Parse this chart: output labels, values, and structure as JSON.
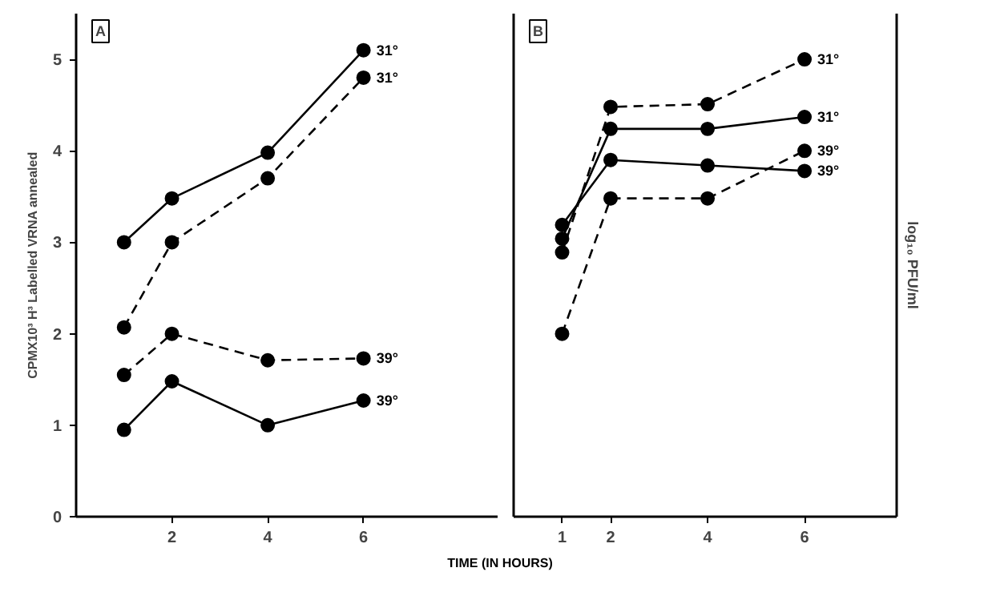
{
  "chart_data": [
    {
      "type": "line",
      "title": "A",
      "ylabel": "CPMX10³ H³ Labelled VRNA annealed",
      "x": [
        1,
        2,
        4,
        6
      ],
      "xlim": [
        0,
        8.8
      ],
      "ylim": [
        0,
        5.5
      ],
      "xticks": [
        2,
        4,
        6
      ],
      "yticks": [
        0,
        1,
        2,
        3,
        4,
        5
      ],
      "marker": "circle",
      "grid": false,
      "series": [
        {
          "name": "31°",
          "color": "#000000",
          "line_style": "solid",
          "values": [
            3.0,
            3.48,
            3.98,
            5.1
          ]
        },
        {
          "name": "31°",
          "color": "#000000",
          "line_style": "dashed",
          "values": [
            2.07,
            3.0,
            3.7,
            4.8
          ]
        },
        {
          "name": "39°",
          "color": "#000000",
          "line_style": "dashed",
          "values": [
            1.55,
            2.0,
            1.71,
            1.73
          ]
        },
        {
          "name": "39°",
          "color": "#000000",
          "line_style": "solid",
          "values": [
            0.95,
            1.48,
            1.0,
            1.27
          ]
        }
      ]
    },
    {
      "type": "line",
      "title": "B",
      "xlabel": "TIME (IN HOURS)",
      "y2label": "log₁₀ PFU/ml",
      "x": [
        1,
        2,
        4,
        6
      ],
      "xlim": [
        0,
        7.9
      ],
      "ylim": [
        0,
        5.5
      ],
      "xticks": [
        1,
        2,
        4,
        6
      ],
      "tick_labels": "x",
      "marker": "circle",
      "grid": false,
      "series": [
        {
          "name": "31°",
          "color": "#000000",
          "line_style": "dashed",
          "values": [
            2.89,
            4.48,
            4.51,
            5.0
          ]
        },
        {
          "name": "31°",
          "color": "#000000",
          "line_style": "solid",
          "values": [
            3.04,
            4.24,
            4.24,
            4.37
          ]
        },
        {
          "name": "39°",
          "color": "#000000",
          "line_style": "dashed",
          "values": [
            2.0,
            3.48,
            3.48,
            4.0
          ]
        },
        {
          "name": "39°",
          "color": "#000000",
          "line_style": "solid",
          "values": [
            3.19,
            3.9,
            3.84,
            3.78
          ]
        }
      ]
    }
  ]
}
